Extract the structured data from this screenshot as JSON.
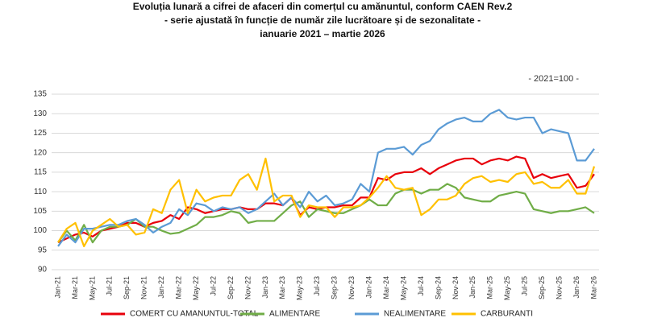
{
  "chart_data": {
    "type": "line",
    "title": [
      "Evoluția lunară a cifrei de afaceri din comerțul cu amănuntul, conform CAEN Rev.2",
      "- serie ajustată în funcție de număr zile lucrătoare și de sezonalitate -",
      "ianuarie 2021 – martie 2026"
    ],
    "annotation": "- 2021=100 -",
    "categories": [
      "Jan-21",
      null,
      "Mar-21",
      null,
      "May-21",
      null,
      "Jul-21",
      null,
      "Sep-21",
      null,
      "Nov-21",
      null,
      "Jan-22",
      null,
      "Mar-22",
      null,
      "May-22",
      null,
      "Jul-22",
      null,
      "Sep-22",
      null,
      "Nov-22",
      null,
      "Jan-23",
      null,
      "Mar-23",
      null,
      "May-23",
      null,
      "Jul-23",
      null,
      "Sep-23",
      null,
      "Nov-23",
      null,
      "Jan-24",
      null,
      "Mar-24",
      null,
      "May-24",
      null,
      "Jul-24",
      null,
      "Sep-24",
      null,
      "Nov-24",
      null,
      "Jan-25",
      null,
      "Mar-25",
      null,
      "May-25",
      null,
      "Jul-25",
      null,
      "Sep-25",
      null,
      "Nov-25",
      null,
      "Jan-26",
      null,
      "Mar-26"
    ],
    "series": [
      {
        "name": "COMERT CU AMANUNTUL-TOTAL",
        "color": "#e8000b",
        "values": [
          97,
          98,
          99,
          99.5,
          98.5,
          100,
          100.5,
          101,
          102,
          102,
          101,
          102,
          102.5,
          104,
          103,
          106,
          105.5,
          104.5,
          105,
          105.5,
          105.5,
          106,
          105.5,
          105.5,
          107,
          107,
          106.5,
          108.5,
          104,
          106,
          105.5,
          106,
          106,
          106.5,
          106.5,
          108.5,
          108.5,
          113.5,
          113,
          114.5,
          115,
          115,
          116,
          114.5,
          116,
          117,
          118,
          118.5,
          118.5,
          117,
          118,
          118.5,
          118,
          119,
          118.5,
          113.5,
          114.5,
          113.5,
          114,
          114.5,
          111,
          111.5,
          114.5
        ]
      },
      {
        "name": "ALIMENTARE",
        "color": "#70ad47",
        "values": [
          97,
          100,
          97.5,
          101.5,
          97,
          100,
          101,
          101,
          101.5,
          103,
          101,
          101,
          100,
          99.2,
          99.5,
          100.5,
          101.5,
          103.5,
          103.5,
          104,
          105,
          104.5,
          102,
          102.5,
          102.5,
          102.5,
          104.5,
          106.5,
          107.5,
          103.5,
          105.5,
          105,
          104.5,
          104.5,
          105.5,
          106.5,
          108,
          106.5,
          106.5,
          109.5,
          110.5,
          110.5,
          109.5,
          110.5,
          110.5,
          112,
          111,
          108.5,
          108,
          107.5,
          107.5,
          109,
          109.5,
          110,
          109.5,
          105.5,
          105,
          104.5,
          105,
          105,
          105.5,
          106,
          104.5
        ]
      },
      {
        "name": "NEALIMENTARE",
        "color": "#5b9bd5",
        "values": [
          96,
          99,
          97,
          100.5,
          100.5,
          101,
          101.5,
          101.5,
          102.5,
          103,
          101.5,
          99.5,
          101,
          102,
          105.5,
          104,
          107,
          106.5,
          105,
          106,
          105.5,
          106,
          104.5,
          105.5,
          107.5,
          109.5,
          106.5,
          108.5,
          106,
          110,
          107.5,
          109,
          106.5,
          107,
          108,
          112,
          110,
          120,
          121,
          121,
          121.5,
          119.5,
          122,
          123,
          126,
          127.5,
          128.5,
          129,
          128,
          128,
          130,
          131,
          129,
          128.5,
          129,
          129,
          125,
          126,
          125.5,
          125,
          118,
          118,
          121
        ]
      },
      {
        "name": "CARBURANTI",
        "color": "#ffc000",
        "values": [
          97,
          100.5,
          102,
          96,
          100,
          101.5,
          103,
          101,
          101.5,
          99,
          99.5,
          105.5,
          104.5,
          110.5,
          113,
          104.5,
          110.5,
          107.5,
          108.5,
          109,
          109,
          113,
          114.5,
          110.5,
          118.5,
          107.5,
          109,
          109,
          103.5,
          106.5,
          106,
          106,
          103.5,
          106,
          106,
          106.5,
          108.5,
          111,
          114,
          111,
          110.5,
          111,
          104,
          105.5,
          108,
          108,
          109,
          112,
          113.5,
          114,
          112.5,
          113,
          112.5,
          114.5,
          115,
          112,
          112.5,
          111,
          111,
          113,
          109.5,
          109.5,
          116.5
        ]
      }
    ],
    "ylim": [
      90,
      135
    ],
    "yticks": [
      90,
      95,
      100,
      105,
      110,
      115,
      120,
      125,
      130,
      135
    ],
    "grid": true,
    "legend": "bottom"
  }
}
